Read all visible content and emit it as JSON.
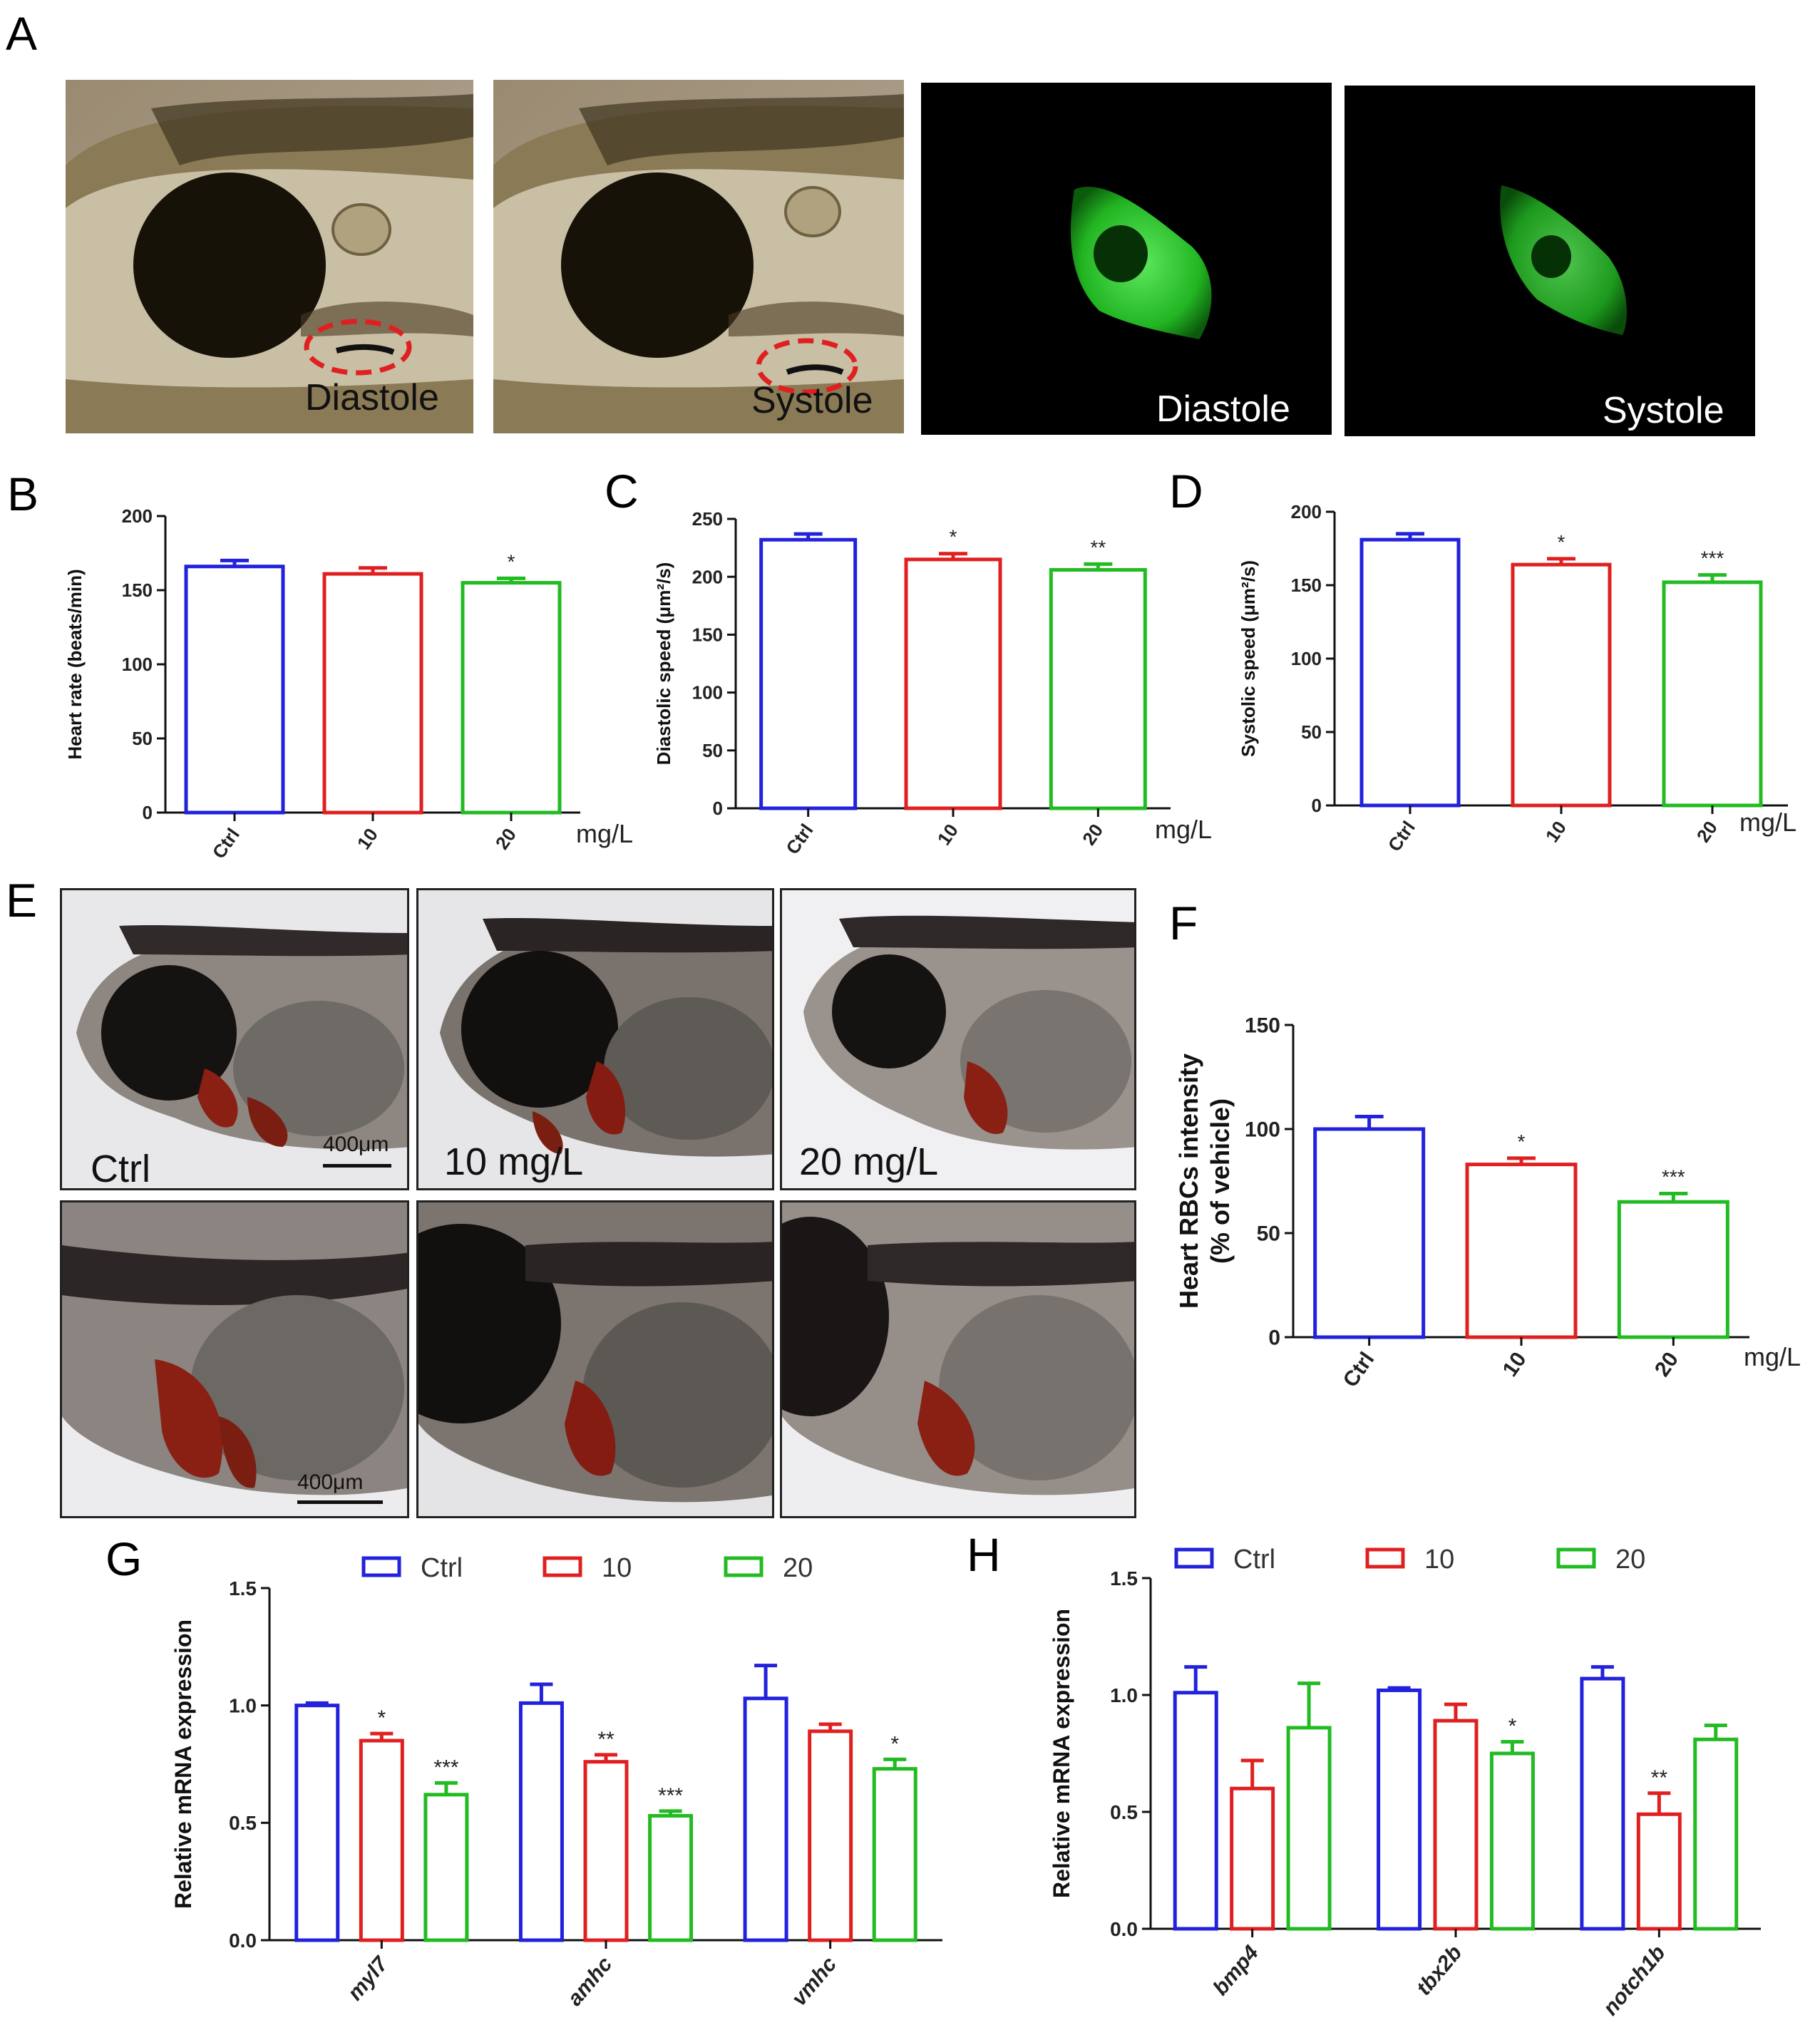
{
  "panels": {
    "A": {
      "letter": "A",
      "images": [
        {
          "label": "Diastole",
          "kind": "brightfield"
        },
        {
          "label": "Systole",
          "kind": "brightfield"
        },
        {
          "label": "Diastole",
          "kind": "fluorescence"
        },
        {
          "label": "Systole",
          "kind": "fluorescence"
        }
      ]
    },
    "B": {
      "letter": "B"
    },
    "C": {
      "letter": "C"
    },
    "D": {
      "letter": "D"
    },
    "E": {
      "letter": "E",
      "labels": [
        "Ctrl",
        "10 mg/L",
        "20 mg/L"
      ],
      "scale_bar": "400μm"
    },
    "F": {
      "letter": "F"
    },
    "G": {
      "letter": "G"
    },
    "H": {
      "letter": "H"
    }
  },
  "colors": {
    "ctrl": "#2222dd",
    "d10": "#e02020",
    "d20": "#22bb22"
  },
  "chart_data": [
    {
      "id": "B",
      "type": "bar",
      "categories": [
        "Ctrl",
        "10",
        "20"
      ],
      "values": [
        166,
        161,
        155
      ],
      "errors": [
        4,
        4,
        3
      ],
      "significance": [
        "",
        "",
        "*"
      ],
      "ylabel": "Heart rate (beats/min)",
      "unit_label": "mg/L",
      "ylim": [
        0,
        200
      ],
      "yticks": [
        0,
        50,
        100,
        150,
        200
      ]
    },
    {
      "id": "C",
      "type": "bar",
      "categories": [
        "Ctrl",
        "10",
        "20"
      ],
      "values": [
        232,
        215,
        206
      ],
      "errors": [
        5,
        5,
        5
      ],
      "significance": [
        "",
        "*",
        "**"
      ],
      "ylabel": "Diastolic speed (μm²/s)",
      "unit_label": "mg/L",
      "ylim": [
        0,
        250
      ],
      "yticks": [
        0,
        50,
        100,
        150,
        200,
        250
      ]
    },
    {
      "id": "D",
      "type": "bar",
      "categories": [
        "Ctrl",
        "10",
        "20"
      ],
      "values": [
        181,
        164,
        152
      ],
      "errors": [
        4,
        4,
        5
      ],
      "significance": [
        "",
        "*",
        "***"
      ],
      "ylabel": "Systolic speed (μm²/s)",
      "unit_label": "mg/L",
      "ylim": [
        0,
        200
      ],
      "yticks": [
        0,
        50,
        100,
        150,
        200
      ]
    },
    {
      "id": "F",
      "type": "bar",
      "categories": [
        "Ctrl",
        "10",
        "20"
      ],
      "values": [
        100,
        83,
        65
      ],
      "errors": [
        6,
        3,
        4
      ],
      "significance": [
        "",
        "*",
        "***"
      ],
      "ylabel": "Heart RBCs intensity (% of vehicle)",
      "ylabel_lines": [
        "Heart RBCs intensity",
        "(% of vehicle)"
      ],
      "unit_label": "mg/L",
      "ylim": [
        0,
        150
      ],
      "yticks": [
        0,
        50,
        100,
        150
      ]
    },
    {
      "id": "G",
      "type": "bar",
      "categories": [
        "myl7",
        "amhc",
        "vmhc"
      ],
      "series": [
        {
          "name": "Ctrl",
          "values": [
            1.0,
            1.01,
            1.03
          ],
          "errors": [
            0.01,
            0.08,
            0.14
          ],
          "significance": [
            "",
            "",
            ""
          ]
        },
        {
          "name": "10",
          "values": [
            0.85,
            0.76,
            0.89
          ],
          "errors": [
            0.03,
            0.03,
            0.03
          ],
          "significance": [
            "*",
            "**",
            ""
          ]
        },
        {
          "name": "20",
          "values": [
            0.62,
            0.53,
            0.73
          ],
          "errors": [
            0.05,
            0.02,
            0.04
          ],
          "significance": [
            "***",
            "***",
            "*"
          ]
        }
      ],
      "ylabel": "Relative mRNA expression",
      "ylim": [
        0,
        1.5
      ],
      "yticks": [
        "0.0",
        "0.5",
        "1.0",
        "1.5"
      ]
    },
    {
      "id": "H",
      "type": "bar",
      "categories": [
        "bmp4",
        "tbx2b",
        "notch1b"
      ],
      "series": [
        {
          "name": "Ctrl",
          "values": [
            1.01,
            1.02,
            1.07
          ],
          "errors": [
            0.11,
            0.01,
            0.05
          ],
          "significance": [
            "",
            "",
            ""
          ]
        },
        {
          "name": "10",
          "values": [
            0.6,
            0.89,
            0.49
          ],
          "errors": [
            0.12,
            0.07,
            0.09
          ],
          "significance": [
            "",
            "",
            "**"
          ]
        },
        {
          "name": "20",
          "values": [
            0.86,
            0.75,
            0.81
          ],
          "errors": [
            0.19,
            0.05,
            0.06
          ],
          "significance": [
            "",
            "*",
            ""
          ]
        }
      ],
      "ylabel": "Relative mRNA expression",
      "ylim": [
        0,
        1.5
      ],
      "yticks": [
        "0.0",
        "0.5",
        "1.0",
        "1.5"
      ]
    }
  ]
}
